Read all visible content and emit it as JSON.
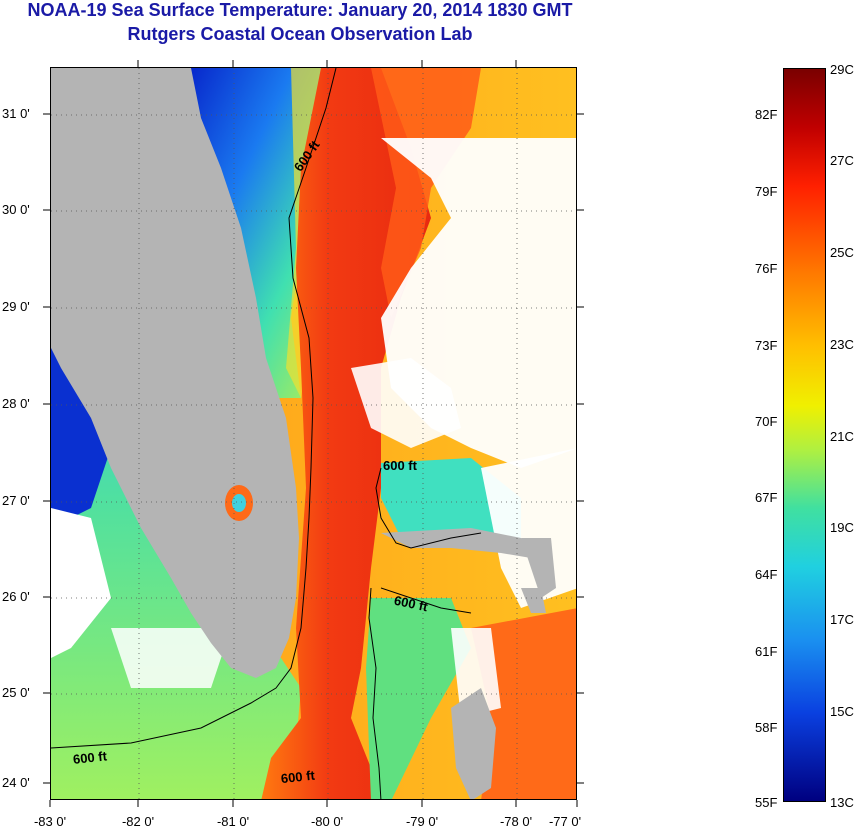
{
  "header": {
    "title": "NOAA-19 Sea Surface Temperature:  January 20, 2014 1830 GMT",
    "subtitle": "Rutgers Coastal Ocean Observation Lab"
  },
  "map": {
    "lat_ticks": [
      "24 0'",
      "25 0'",
      "26 0'",
      "27 0'",
      "28 0'",
      "29 0'",
      "30 0'",
      "31 0'"
    ],
    "lon_ticks": [
      "-83 0'",
      "-82 0'",
      "-81 0'",
      "-80 0'",
      "-79 0'",
      "-78 0'",
      "-77 0'"
    ],
    "contour_label": "600 ft",
    "colors": {
      "land": "#b4b4b4",
      "cloud": "#ffffff",
      "gulf_stream": "#f03a10",
      "shelf_cold": "#0a2bd8",
      "shelf_mid": "#20d8c8"
    }
  },
  "colorbar": {
    "celsius_labels": [
      "29C",
      "27C",
      "25C",
      "23C",
      "21C",
      "19C",
      "17C",
      "15C",
      "13C"
    ],
    "fahrenheit_labels": [
      "82F",
      "79F",
      "76F",
      "73F",
      "70F",
      "67F",
      "64F",
      "61F",
      "58F",
      "55F"
    ],
    "min_c": 13,
    "max_c": 29
  }
}
